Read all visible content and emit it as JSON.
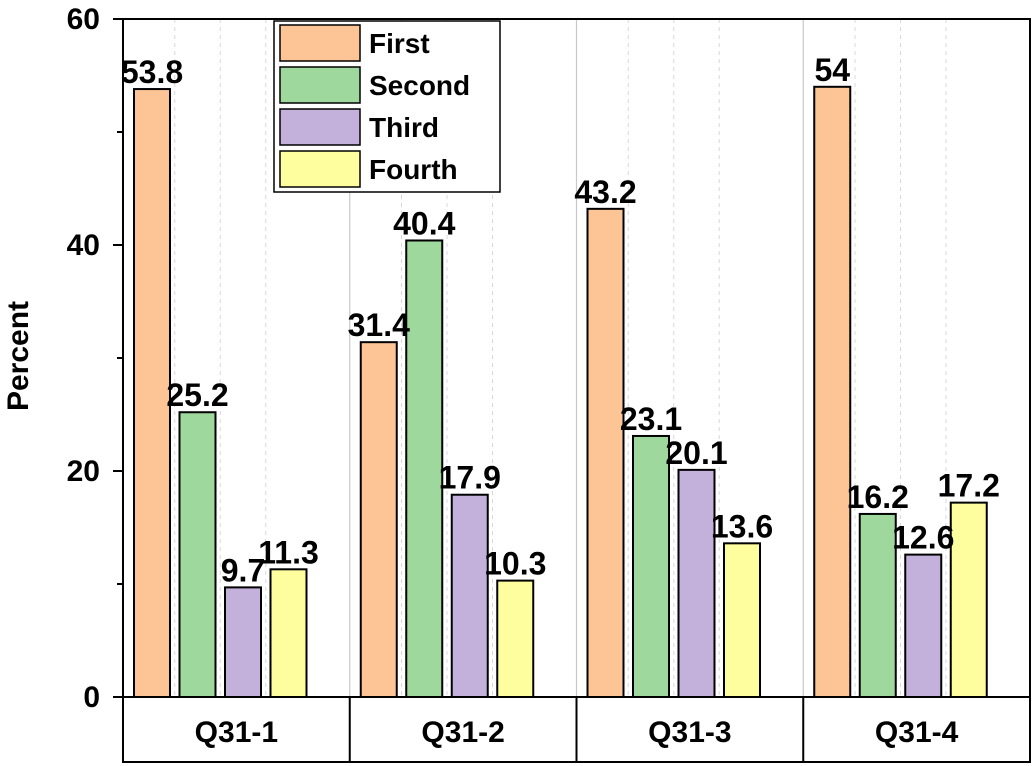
{
  "chart_data": {
    "type": "bar",
    "title": "",
    "xlabel": "",
    "ylabel": "Percent",
    "ylim": [
      0,
      60
    ],
    "yticks": [
      0,
      20,
      40,
      60
    ],
    "grid": true,
    "legend_position": "top-center",
    "categories": [
      "Q31-1",
      "Q31-2",
      "Q31-3",
      "Q31-4"
    ],
    "series": [
      {
        "name": "First",
        "values": [
          53.8,
          31.4,
          43.2,
          54
        ],
        "labels": [
          "53.8",
          "31.4",
          "43.2",
          "54"
        ],
        "color": "#FDC596"
      },
      {
        "name": "Second",
        "values": [
          25.2,
          40.4,
          23.1,
          16.2
        ],
        "labels": [
          "25.2",
          "40.4",
          "23.1",
          "16.2"
        ],
        "color": "#9ED89C"
      },
      {
        "name": "Third",
        "values": [
          9.7,
          17.9,
          20.1,
          12.6
        ],
        "labels": [
          "9.7",
          "17.9",
          "20.1",
          "12.6"
        ],
        "color": "#C3B0DB"
      },
      {
        "name": "Fourth",
        "values": [
          11.3,
          10.3,
          13.6,
          17.2
        ],
        "labels": [
          "11.3",
          "10.3",
          "13.6",
          "17.2"
        ],
        "color": "#FEFE9E"
      }
    ]
  }
}
